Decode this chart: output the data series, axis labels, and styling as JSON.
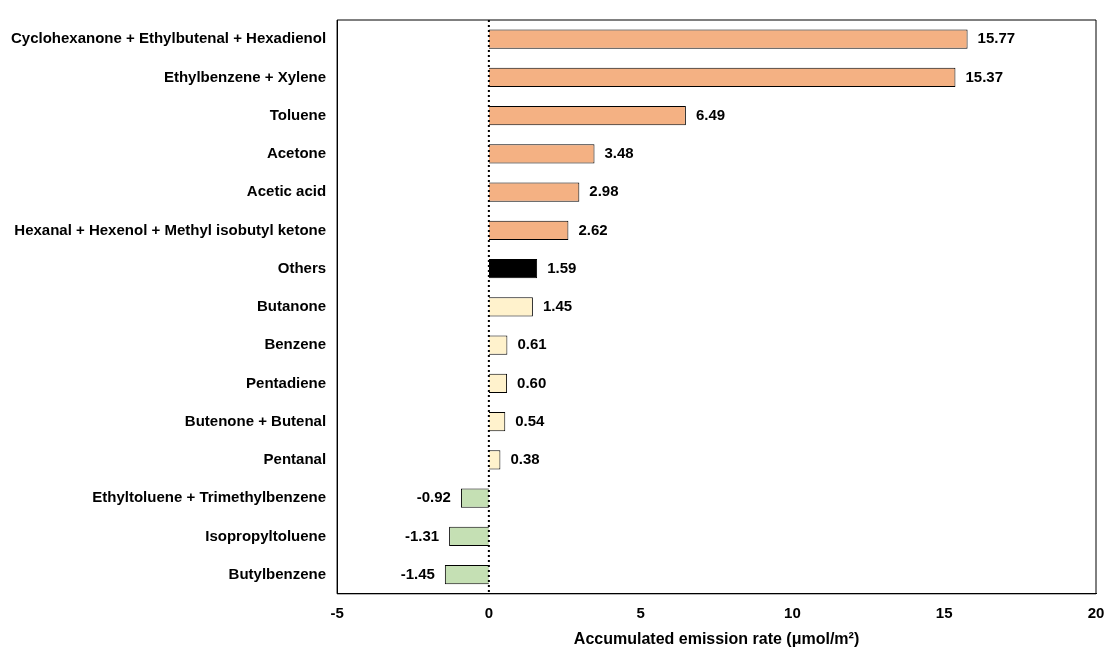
{
  "chart_data": {
    "type": "bar",
    "orientation": "horizontal",
    "xlabel": "Accumulated emission rate (μmol/m²)",
    "categories": [
      "Cyclohexanone + Ethylbutenal + Hexadienol",
      "Ethylbenzene + Xylene",
      "Toluene",
      "Acetone",
      "Acetic acid",
      "Hexanal + Hexenol + Methyl isobutyl ketone",
      "Others",
      "Butanone",
      "Benzene",
      "Pentadiene",
      "Butenone + Butenal",
      "Pentanal",
      "Ethyltoluene + Trimethylbenzene",
      "Isopropyltoluene",
      "Butylbenzene"
    ],
    "values": [
      15.77,
      15.37,
      6.49,
      3.48,
      2.98,
      2.62,
      1.59,
      1.45,
      0.61,
      0.6,
      0.54,
      0.38,
      -0.92,
      -1.31,
      -1.45
    ],
    "value_labels": [
      "15.77",
      "15.37",
      "6.49",
      "3.48",
      "2.98",
      "2.62",
      "1.59",
      "1.45",
      "0.61",
      "0.60",
      "0.54",
      "0.38",
      "-0.92",
      "-1.31",
      "-1.45"
    ],
    "colors": [
      "#f4b183",
      "#f4b183",
      "#f4b183",
      "#f4b183",
      "#f4b183",
      "#f4b183",
      "#000000",
      "#fff2cc",
      "#fff2cc",
      "#fff2cc",
      "#fff2cc",
      "#fff2cc",
      "#c5e0b4",
      "#c5e0b4",
      "#c5e0b4"
    ],
    "xlim": [
      -5,
      20
    ],
    "xticks": [
      -5,
      0,
      5,
      10,
      15,
      20
    ],
    "ref_lines": [
      {
        "axis": "x",
        "value": 0,
        "color": "#000000",
        "line_style": "dotted"
      }
    ],
    "grid": false,
    "legend": false
  }
}
